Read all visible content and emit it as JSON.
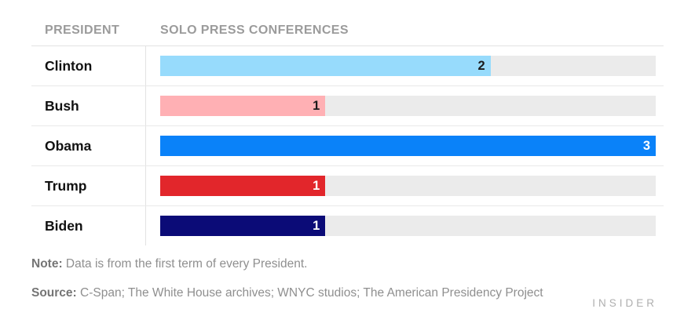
{
  "table": {
    "col_headers": [
      "PRESIDENT",
      "SOLO PRESS CONFERENCES"
    ]
  },
  "chart_data": {
    "type": "bar",
    "orientation": "horizontal",
    "title": "",
    "xlabel": "",
    "ylabel": "",
    "categories": [
      "Clinton",
      "Bush",
      "Obama",
      "Trump",
      "Biden"
    ],
    "values": [
      2,
      1,
      3,
      1,
      1
    ],
    "xlim": [
      0,
      3
    ],
    "grid": false,
    "legend": false,
    "bar_colors": [
      "#97DBFC",
      "#FFB0B4",
      "#0A82F9",
      "#E2262B",
      "#0B0B77"
    ],
    "value_label_colors": [
      "#1B1B1B",
      "#1B1B1B",
      "#FFFFFF",
      "#FFFFFF",
      "#FFFFFF"
    ],
    "track_color": "#EBEBEB"
  },
  "footer": {
    "note_label": "Note:",
    "note_text": "Data is from the first term of every President.",
    "source_label": "Source:",
    "source_text": "C-Span; The White House archives; WNYC studios; The American Presidency Project"
  },
  "branding": {
    "logo_text": "INSIDER"
  }
}
